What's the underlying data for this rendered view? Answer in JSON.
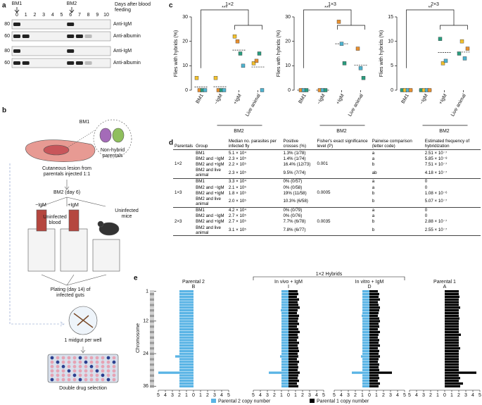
{
  "panel_labels": [
    "a",
    "b",
    "c",
    "d",
    "e"
  ],
  "blot": {
    "markers": [
      "BM1",
      "BM2"
    ],
    "lanes": [
      0,
      1,
      2,
      3,
      4,
      5,
      6,
      7,
      8,
      9,
      10
    ],
    "axis_label": "Days after blood feeding",
    "rows": [
      {
        "size": 80,
        "label": "Anti-IgM"
      },
      {
        "size": 60,
        "label": "Anti-albumin"
      },
      {
        "size": 80,
        "label": "Anti-IgM"
      },
      {
        "size": 60,
        "label": "Anti-albumin"
      }
    ]
  },
  "schematic": {
    "source": "BM1",
    "parentals": "Non-hybrid parentals",
    "lesion": "Cutaneous lesion from parentals injected 1:1",
    "feed": "BM2 (day 6)",
    "minus": "−IgM",
    "plus": "+IgM",
    "blood": "Uninfected blood",
    "mice": "Uninfected mice",
    "plating": "Plating (day 14) of infected guts",
    "well": "1 midgut per well",
    "selection": "Double drug selection"
  },
  "chart_data": [
    {
      "type": "strip",
      "title": "1×2",
      "ylabel": "Flies with hybrids (%)",
      "significance": "***",
      "group_label": "BM2",
      "categories": [
        "BM1",
        "−IgM",
        "+IgM",
        "Live animal"
      ],
      "ylim": [
        0,
        30
      ],
      "yticks": [
        0,
        10,
        20,
        30
      ],
      "means": [
        1.3,
        1.4,
        16.4,
        9.5
      ],
      "series": [
        {
          "color": "#f2c12e",
          "values": [
            5,
            5,
            22,
            11
          ]
        },
        {
          "color": "#e8902f",
          "values": [
            0,
            0,
            20,
            12
          ]
        },
        {
          "color": "#2a9d7f",
          "values": [
            0,
            0,
            15,
            15
          ]
        },
        {
          "color": "#4fb3cf",
          "values": [
            0,
            0,
            10,
            0
          ]
        }
      ]
    },
    {
      "type": "strip",
      "title": "1×3",
      "ylabel": "Flies with hybrids (%)",
      "significance": "***",
      "group_label": "BM2",
      "categories": [
        "BM1",
        "−IgM",
        "+IgM",
        "Live animal"
      ],
      "ylim": [
        0,
        30
      ],
      "yticks": [
        0,
        10,
        20,
        30
      ],
      "means": [
        0,
        0,
        19,
        10.3
      ],
      "series": [
        {
          "color": "#e8902f",
          "values": [
            0,
            0,
            28,
            17
          ]
        },
        {
          "color": "#4fb3cf",
          "values": [
            0,
            0,
            19,
            9
          ]
        },
        {
          "color": "#2a9d7f",
          "values": [
            0,
            0,
            11,
            5
          ]
        }
      ]
    },
    {
      "type": "strip",
      "title": "2×3",
      "ylabel": "Flies with hybrids (%)",
      "significance": "**",
      "group_label": "BM2",
      "categories": [
        "BM1",
        "−IgM",
        "+IgM",
        "Live animal"
      ],
      "ylim": [
        0,
        15
      ],
      "yticks": [
        0,
        5,
        10,
        15
      ],
      "means": [
        0,
        0,
        7.7,
        7.8
      ],
      "series": [
        {
          "color": "#2a9d7f",
          "values": [
            0,
            0,
            10.5,
            7.5
          ]
        },
        {
          "color": "#f2c12e",
          "values": [
            0,
            0,
            5.5,
            10
          ]
        },
        {
          "color": "#4fb3cf",
          "values": [
            0,
            0,
            6,
            6.5
          ]
        },
        {
          "color": "#e8902f",
          "values": [
            0,
            0,
            null,
            8.5
          ]
        }
      ]
    }
  ],
  "table": {
    "columns": [
      "Parentals",
      "Group",
      "Median no. parasites per infected fly",
      "Positive crosses (%)",
      "Fisher's exact significance level (P)",
      "Pairwise comparison (letter code)",
      "Estimated frequency of hybridization"
    ],
    "groups": [
      {
        "parental": "1×2",
        "p": "0.001",
        "rows": [
          [
            "BM1",
            "5.1 × 10⁴",
            "1.3% (1/78)",
            "a",
            "2.51 × 10⁻⁷"
          ],
          [
            "BM2 and −IgM",
            "2.3 × 10⁵",
            "1.4% (1/74)",
            "a",
            "5.85 × 10⁻⁸"
          ],
          [
            "BM2 and +IgM",
            "2.2 × 10⁵",
            "16.4% (12/73)",
            "b",
            "7.51 × 10⁻⁷"
          ],
          [
            "BM2 and live animal",
            "2.3 × 10⁵",
            "9.5% (7/74)",
            "ab",
            "4.18 × 10⁻⁷"
          ]
        ]
      },
      {
        "parental": "1×3",
        "p": "0.0005",
        "rows": [
          [
            "BM1",
            "3.3 × 10⁴",
            "0% (0/57)",
            "a",
            "0"
          ],
          [
            "BM2 and −IgM",
            "2.1 × 10⁵",
            "0% (0/58)",
            "a",
            "0"
          ],
          [
            "BM2 and +IgM",
            "1.8 × 10⁵",
            "19% (11/58)",
            "b",
            "1.08 × 10⁻⁶"
          ],
          [
            "BM2 and live animal",
            "2.0 × 10⁵",
            "10.3% (6/58)",
            "b",
            "5.07 × 10⁻⁷"
          ]
        ]
      },
      {
        "parental": "2×3",
        "p": "0.0035",
        "rows": [
          [
            "BM1",
            "4.2 × 10⁴",
            "0% (0/79)",
            "a",
            "0"
          ],
          [
            "BM2 and −IgM",
            "2.7 × 10⁵",
            "0% (0/76)",
            "a",
            "0"
          ],
          [
            "BM2 and +IgM",
            "2.7 × 10⁵",
            "7.7% (6/78)",
            "b",
            "2.88 × 10⁻⁷"
          ],
          [
            "BM2 and live animal",
            "3.1 × 10⁵",
            "7.8% (6/77)",
            "b",
            "2.55 × 10⁻⁷"
          ]
        ]
      }
    ]
  },
  "copy_number": {
    "type": "bar",
    "group_title": "1×2 Hybrids",
    "ylabel": "Chromosome",
    "yticks": [
      1,
      12,
      24,
      36
    ],
    "xticks": [
      {
        "value": -5,
        "label": "5"
      },
      {
        "value": -4,
        "label": "4"
      },
      {
        "value": -3,
        "label": "3"
      },
      {
        "value": -2,
        "label": "2"
      },
      {
        "value": -1,
        "label": "1"
      },
      0,
      1,
      2,
      3,
      4,
      5
    ],
    "legend": [
      {
        "name": "Parental 2 copy number",
        "color": "#5ab4e5"
      },
      {
        "name": "Parental 1 copy number",
        "color": "#000000"
      }
    ],
    "tracks": [
      {
        "title": "Parental 2",
        "code": "B",
        "p2": [
          2,
          2,
          2,
          2,
          2,
          2,
          2,
          2,
          2,
          2,
          2,
          2,
          2,
          2,
          2,
          2,
          2,
          2,
          2,
          2,
          2,
          2,
          2,
          2,
          2.6,
          2,
          2,
          2,
          2,
          2,
          5,
          2,
          2,
          2,
          2,
          2
        ]
      },
      {
        "title": "In vivo + IgM",
        "code": "I",
        "p2": [
          1,
          1,
          1,
          1,
          1,
          1,
          1,
          1.1,
          1,
          1,
          1,
          1,
          1,
          1,
          1,
          1,
          1,
          1,
          1,
          1,
          1,
          1,
          1,
          1,
          1.2,
          1,
          1,
          1,
          1,
          1,
          2.8,
          1,
          1,
          1,
          1,
          1
        ],
        "p1": [
          1.3,
          1.4,
          1.2,
          1.5,
          1.3,
          1.4,
          1.6,
          1.3,
          1.2,
          1.5,
          1.4,
          1.3,
          1.5,
          1.2,
          1.4,
          1.6,
          1.3,
          1.4,
          1.2,
          1.5,
          1.3,
          1.4,
          1.5,
          1.3,
          1.4,
          1.2,
          1.5,
          1.3,
          1.4,
          1.3,
          1.6,
          1.4,
          1.3,
          1.5,
          1.2,
          1.4
        ]
      },
      {
        "title": "In vitro + IgM",
        "code": "D",
        "p2": [
          1,
          1,
          1,
          1,
          1,
          1,
          1,
          1,
          1,
          1.1,
          1,
          1,
          1,
          1,
          1,
          1,
          1,
          1,
          1,
          1,
          1,
          1,
          1,
          1,
          1.2,
          1,
          1,
          1,
          1,
          1,
          2.5,
          1,
          1,
          1,
          1,
          1
        ],
        "p1": [
          1.2,
          1.4,
          1.3,
          1.5,
          1.2,
          1.3,
          1.5,
          1.4,
          1.3,
          1.2,
          1.4,
          1.5,
          1.3,
          1.4,
          1.2,
          1.5,
          1.3,
          1.2,
          1.4,
          1.3,
          1.5,
          1.2,
          1.4,
          1.3,
          1.5,
          1.3,
          1.2,
          1.4,
          1.3,
          1.4,
          3.2,
          1.3,
          1.4,
          1.2,
          1.5,
          1.3
        ]
      },
      {
        "title": "Parental 1",
        "code": "A",
        "p1": [
          2,
          2,
          2.1,
          2,
          2,
          2,
          2.2,
          2,
          2,
          2,
          2.1,
          2,
          2,
          2,
          2,
          2,
          2.3,
          2,
          2,
          2,
          2,
          2.2,
          2,
          2,
          2,
          2,
          2,
          2,
          2,
          2,
          4.5,
          2,
          2.2,
          2,
          2.6,
          2.2
        ]
      }
    ]
  }
}
